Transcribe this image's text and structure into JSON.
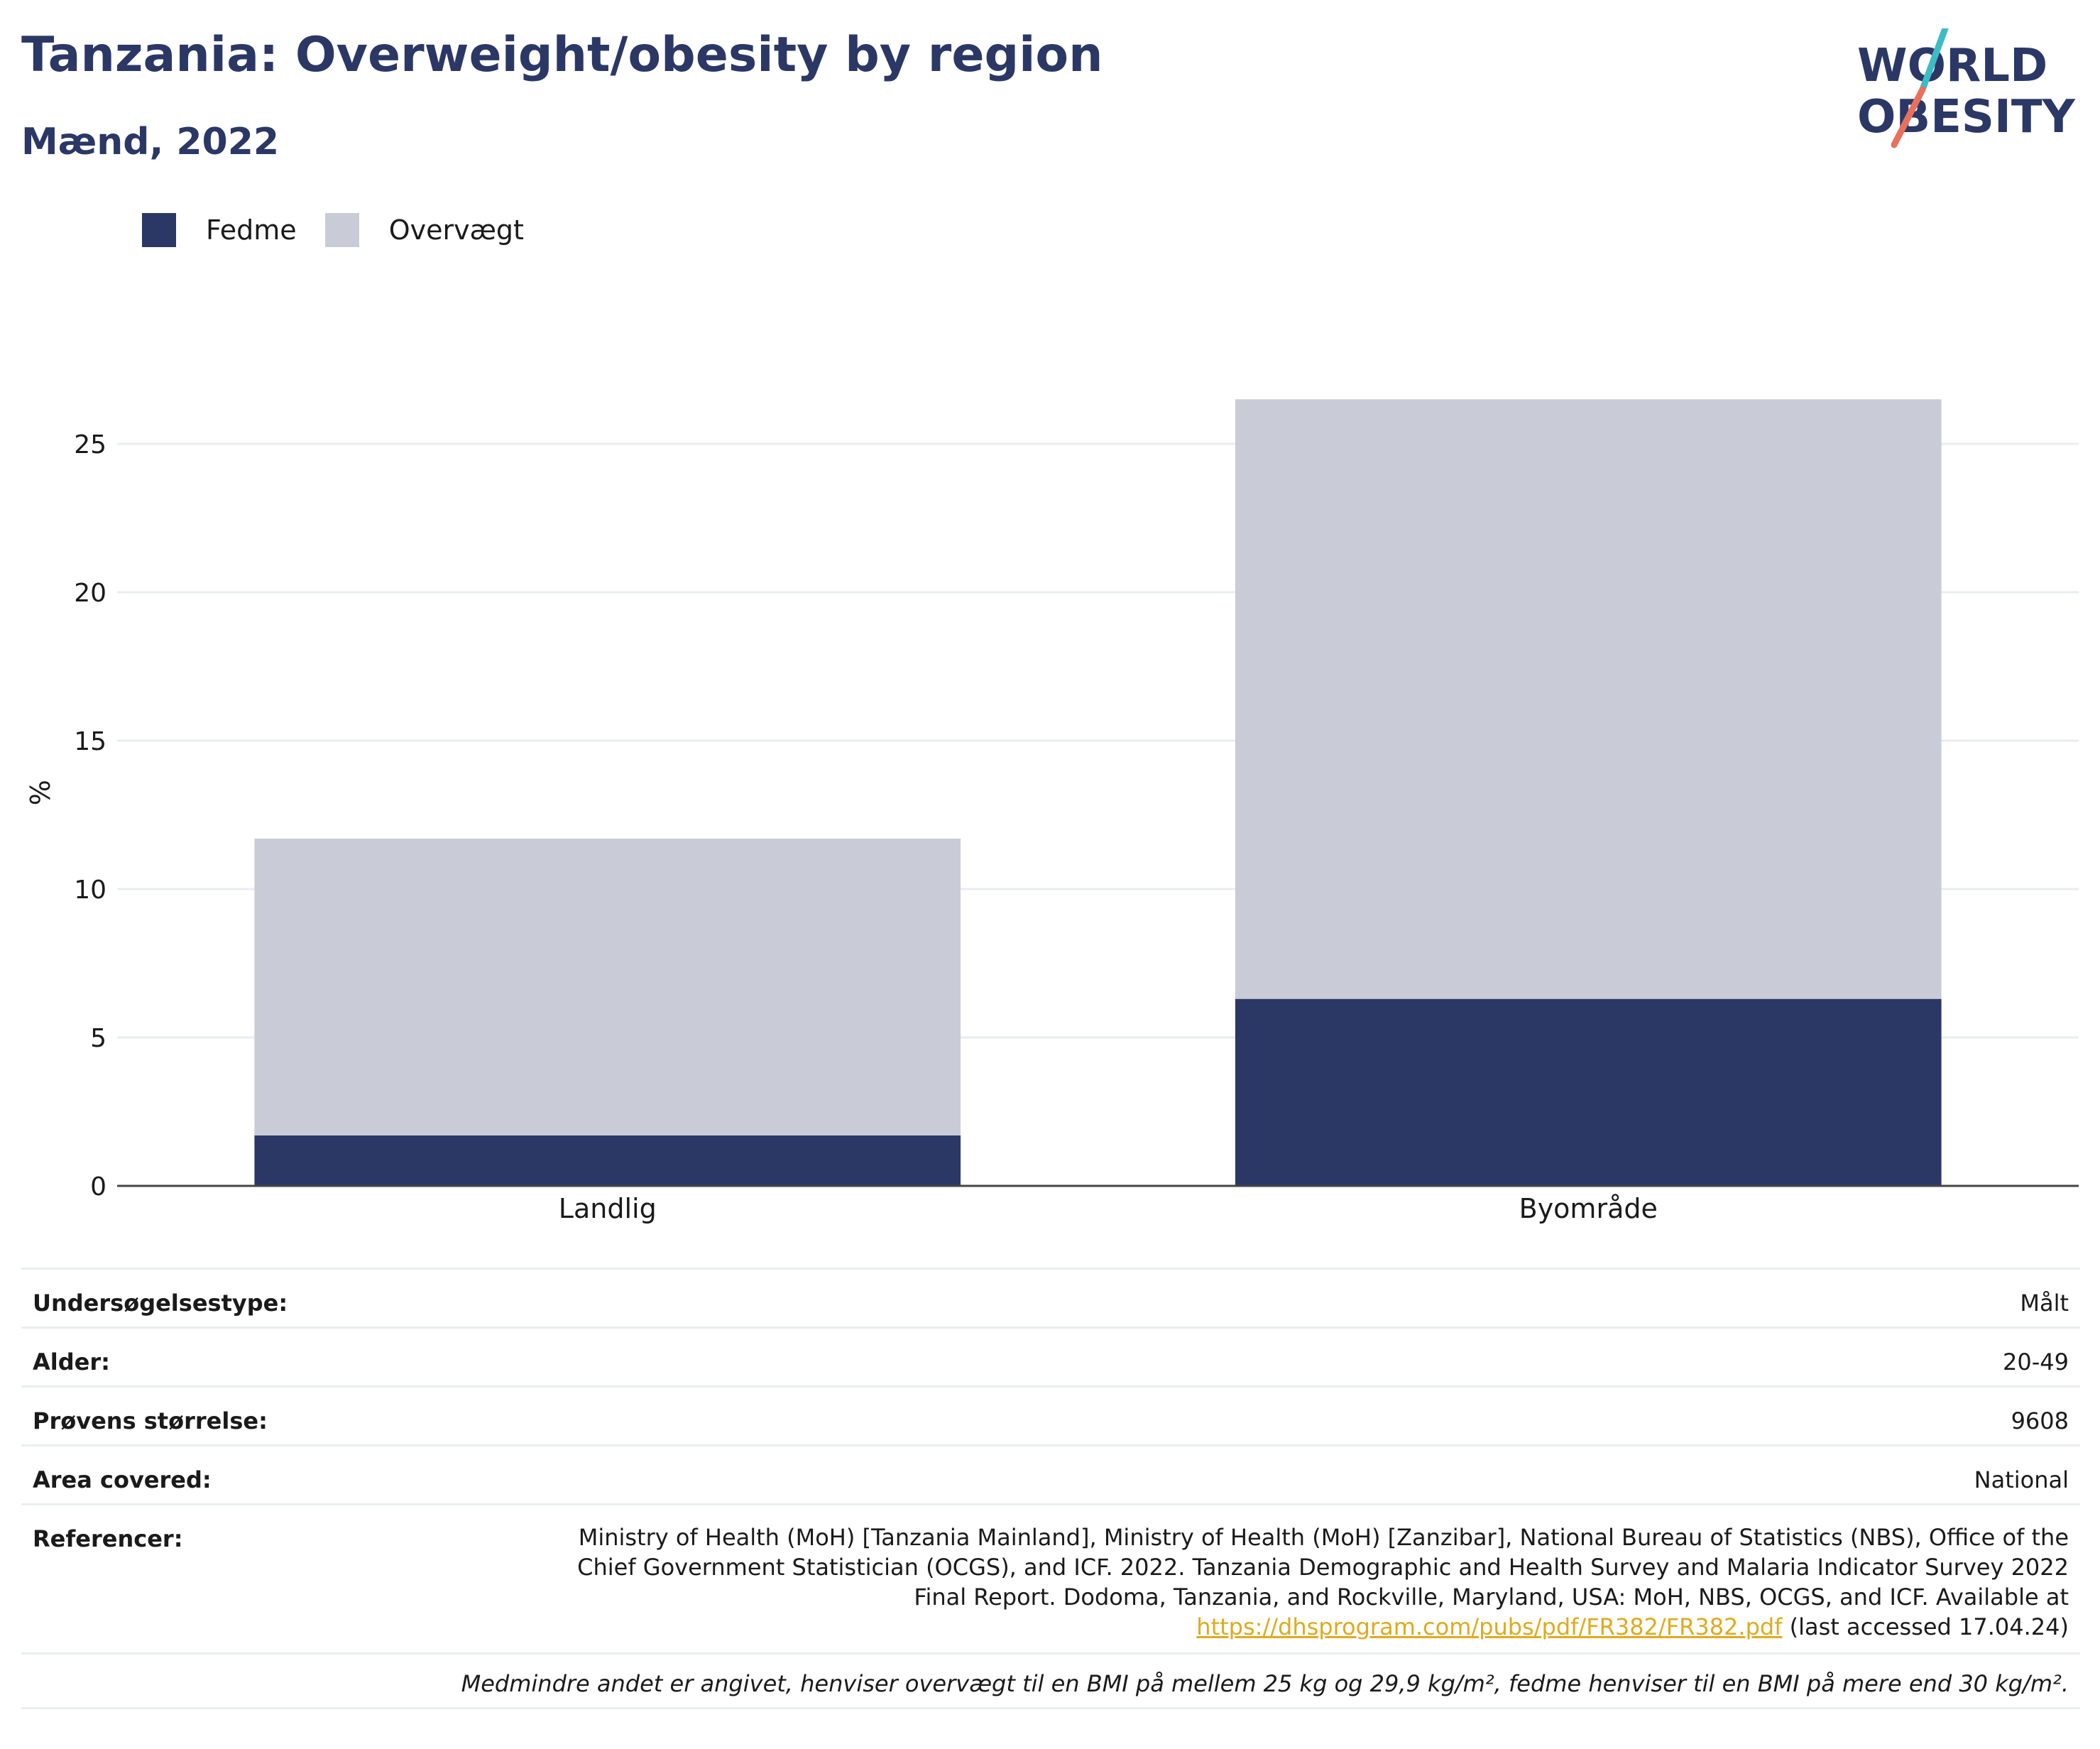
{
  "header": {
    "title": "Tanzania: Overweight/obesity by region",
    "subtitle": "Mænd, 2022"
  },
  "logo": {
    "line1": "WORLD",
    "line2": "OBESITY",
    "text_color": "#2b3866",
    "slash_colors": [
      "#3ebcc4",
      "#e8705c"
    ]
  },
  "legend": {
    "items": [
      {
        "label": "Fedme",
        "color": "#2b3866"
      },
      {
        "label": "Overvægt",
        "color": "#c9ccd7"
      }
    ]
  },
  "chart_data": {
    "type": "bar",
    "stacked": true,
    "categories": [
      "Landlig",
      "Byområde"
    ],
    "series": [
      {
        "name": "Fedme",
        "values": [
          1.7,
          6.3
        ],
        "color": "#2b3866"
      },
      {
        "name": "Overvægt",
        "values": [
          10.0,
          20.2
        ],
        "color": "#c9ccd7"
      }
    ],
    "ylabel": "%",
    "ylim": [
      0,
      26.5
    ],
    "yticks": [
      0,
      5,
      10,
      15,
      20,
      25
    ],
    "grid": true,
    "legend_position": "top-left"
  },
  "info": {
    "rows": [
      {
        "label": "Undersøgelsestype:",
        "value": "Målt"
      },
      {
        "label": "Alder:",
        "value": "20-49"
      },
      {
        "label": "Prøvens størrelse:",
        "value": "9608"
      },
      {
        "label": "Area covered:",
        "value": "National"
      }
    ],
    "references": {
      "label": "Referencer:",
      "line1": "Ministry of Health (MoH) [Tanzania Mainland], Ministry of Health (MoH) [Zanzibar], National Bureau of Statistics (NBS), Office of the",
      "line2": "Chief Government Statistician (OCGS), and ICF. 2022. Tanzania Demographic and Health Survey and Malaria Indicator Survey 2022",
      "line3": "Final Report. Dodoma, Tanzania, and Rockville, Maryland, USA: MoH, NBS, OCGS, and ICF. Available at",
      "link": "https://dhsprogram.com/pubs/pdf/FR382/FR382.pdf",
      "accessed": " (last accessed 17.04.24)"
    },
    "note": "Medmindre andet er angivet, henviser overvægt til en BMI på mellem 25 kg og 29,9 kg/m², fedme henviser til en BMI på mere end 30 kg/m²."
  }
}
